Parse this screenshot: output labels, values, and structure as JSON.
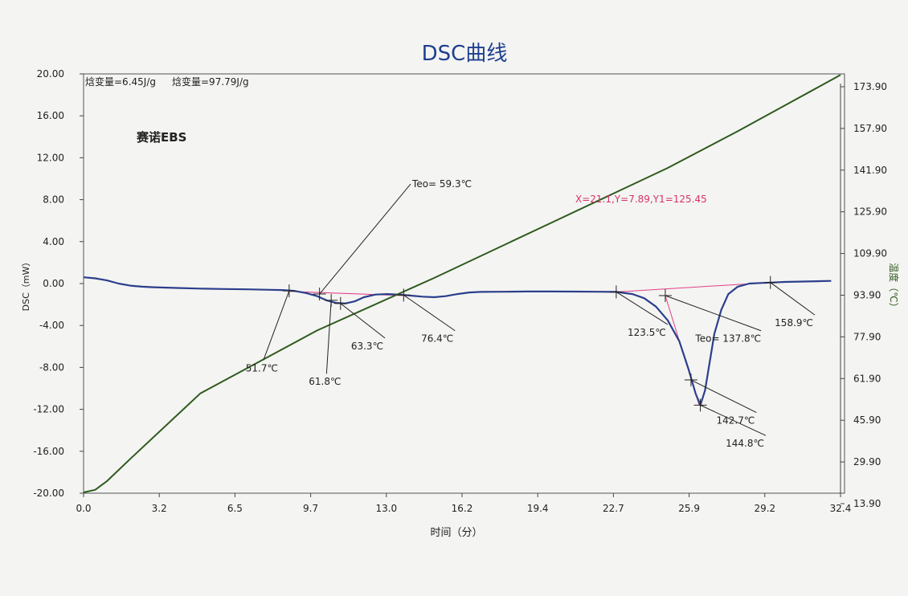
{
  "chart_data": {
    "type": "line",
    "title": "DSC曲线",
    "xlabel": "时间（分）",
    "ylabel": "DSC（mW）",
    "y2label": "温度（℃）",
    "xlim": [
      0.0,
      32.4
    ],
    "ylim": [
      -20.0,
      20.0
    ],
    "y2lim": [
      13.9,
      173.9
    ],
    "x_ticks": [
      "0.0",
      "3.2",
      "6.5",
      "9.7",
      "13.0",
      "16.2",
      "19.4",
      "22.7",
      "25.9",
      "29.2",
      "32.4"
    ],
    "y_ticks": [
      "20.00",
      "16.00",
      "12.00",
      "8.00",
      "4.00",
      "0.00",
      "-4.00",
      "-8.00",
      "-12.00",
      "-16.00",
      "-20.00"
    ],
    "y2_ticks": [
      "173.90",
      "157.90",
      "141.90",
      "125.90",
      "109.90",
      "93.90",
      "77.90",
      "61.90",
      "45.90",
      "29.90",
      "13.90"
    ],
    "enthalpy_text_1": "焓变量=6.45J/g",
    "enthalpy_text_2": "焓变量=97.79J/g",
    "sample_label": "赛诺EBS",
    "cursor_readout": "X=21.1,Y=7.89,Y1=125.45",
    "colors": {
      "dsc": "#2b3f8c",
      "temperature": "#2e5a1e",
      "baseline": "#e0408a",
      "text": "#222222",
      "title": "#1f3f8f",
      "axis": "#444444"
    },
    "series": [
      {
        "name": "DSC",
        "axis": "left",
        "x": [
          0.0,
          0.5,
          1.0,
          1.5,
          2.0,
          2.5,
          3.0,
          4.0,
          5.0,
          6.0,
          7.0,
          8.0,
          8.5,
          9.0,
          9.5,
          10.0,
          10.4,
          10.8,
          11.2,
          11.6,
          12.0,
          12.5,
          13.0,
          13.5,
          14.0,
          14.5,
          15.0,
          15.5,
          16.0,
          16.5,
          17.0,
          18.0,
          19.0,
          20.0,
          21.0,
          22.0,
          22.8,
          23.5,
          24.0,
          24.5,
          25.0,
          25.5,
          25.9,
          26.2,
          26.4,
          26.6,
          26.8,
          27.0,
          27.3,
          27.6,
          28.0,
          28.5,
          29.0,
          29.5,
          30.0,
          31.0,
          32.0
        ],
        "y": [
          0.6,
          0.5,
          0.3,
          0.0,
          -0.2,
          -0.3,
          -0.35,
          -0.42,
          -0.48,
          -0.52,
          -0.55,
          -0.6,
          -0.62,
          -0.7,
          -0.9,
          -1.2,
          -1.6,
          -1.85,
          -1.9,
          -1.7,
          -1.3,
          -1.05,
          -1.0,
          -1.05,
          -1.15,
          -1.25,
          -1.3,
          -1.2,
          -1.0,
          -0.85,
          -0.8,
          -0.78,
          -0.76,
          -0.76,
          -0.77,
          -0.78,
          -0.8,
          -1.0,
          -1.4,
          -2.2,
          -3.5,
          -5.5,
          -8.2,
          -10.5,
          -11.6,
          -10.2,
          -7.5,
          -4.8,
          -2.5,
          -1.0,
          -0.3,
          0.0,
          0.05,
          0.1,
          0.15,
          0.2,
          0.25
        ]
      },
      {
        "name": "温度",
        "axis": "right",
        "x": [
          0.0,
          0.5,
          1.0,
          2.0,
          5.0,
          10.0,
          15.0,
          20.0,
          25.0,
          28.0,
          32.4
        ],
        "y": [
          14.2,
          15.2,
          18.5,
          27.0,
          52.0,
          76.0,
          96.0,
          117.0,
          138.0,
          152.0,
          173.5
        ]
      }
    ],
    "baselines": [
      {
        "x": [
          8.8,
          13.7
        ],
        "y": [
          -0.75,
          -1.15
        ]
      },
      {
        "x": [
          22.8,
          29.4
        ],
        "y": [
          -0.8,
          0.1
        ]
      }
    ],
    "onset_line": {
      "x": [
        24.9,
        26.35
      ],
      "y": [
        -1.15,
        -11.6
      ]
    },
    "annotations": [
      {
        "text": "51.7℃",
        "x": 8.8,
        "y": -0.7,
        "lx": 7.7,
        "ly": -7.3
      },
      {
        "text": "Teo= 59.3℃",
        "x": 10.1,
        "y": -1.0,
        "lx": 14.0,
        "ly": 9.5
      },
      {
        "text": "61.8℃",
        "x": 10.6,
        "y": -1.6,
        "lx": 10.4,
        "ly": -8.6
      },
      {
        "text": "63.3℃",
        "x": 11.0,
        "y": -1.9,
        "lx": 12.9,
        "ly": -5.2
      },
      {
        "text": "76.4℃",
        "x": 13.7,
        "y": -1.1,
        "lx": 15.9,
        "ly": -4.5
      },
      {
        "text": "123.5℃",
        "x": 22.8,
        "y": -0.8,
        "lx": 25.0,
        "ly": -3.9
      },
      {
        "text": "Teo= 137.8℃",
        "x": 24.9,
        "y": -1.15,
        "lx": 29.0,
        "ly": -4.5
      },
      {
        "text": "158.9℃",
        "x": 29.4,
        "y": 0.1,
        "lx": 31.3,
        "ly": -3.0
      },
      {
        "text": "142.7℃",
        "x": 26.0,
        "y": -9.2,
        "lx": 28.8,
        "ly": -12.3
      },
      {
        "text": "144.8℃",
        "x": 26.4,
        "y": -11.6,
        "lx": 29.2,
        "ly": -14.5
      }
    ]
  }
}
